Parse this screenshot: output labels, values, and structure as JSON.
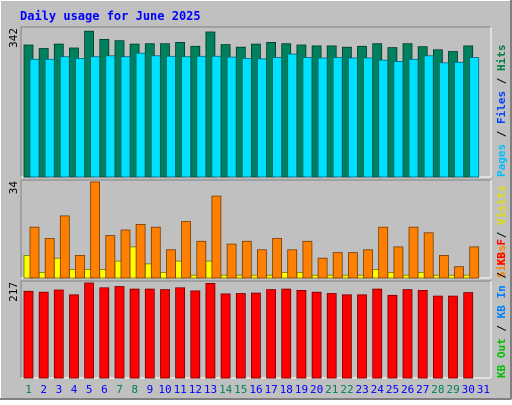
{
  "chart_data": {
    "type": "bar",
    "title": "Daily usage for June 2025",
    "days": [
      "1",
      "2",
      "3",
      "4",
      "5",
      "6",
      "7",
      "8",
      "9",
      "10",
      "11",
      "12",
      "13",
      "14",
      "15",
      "16",
      "17",
      "18",
      "19",
      "20",
      "21",
      "22",
      "23",
      "24",
      "25",
      "26",
      "27",
      "28",
      "29",
      "30",
      "31"
    ],
    "weekend_days": [
      "1",
      "7",
      "8",
      "14",
      "15",
      "21",
      "22",
      "28",
      "29"
    ],
    "panels": [
      {
        "id": "hits",
        "max_label": "342",
        "ymax": 342,
        "side_labels": [
          {
            "text": "Hits",
            "color": "#008040"
          },
          {
            "text": "Files",
            "color": "#0040ff"
          },
          {
            "text": "Pages",
            "color": "#00c0ff"
          }
        ],
        "series": [
          {
            "name": "Hits",
            "color": "#00805c",
            "values": [
              305,
              297,
              307,
              298,
              337,
              318,
              315,
              307,
              308,
              308,
              311,
              302,
              335,
              306,
              300,
              307,
              311,
              308,
              305,
              303,
              303,
              300,
              302,
              308,
              299,
              308,
              301,
              294,
              290,
              303,
              null
            ]
          },
          {
            "name": "Files",
            "color": "#0040ff",
            "values": [
              null,
              null,
              null,
              null,
              null,
              null,
              null,
              null,
              null,
              null,
              null,
              null,
              null,
              null,
              null,
              null,
              null,
              null,
              null,
              null,
              null,
              null,
              null,
              null,
              null,
              null,
              null,
              null,
              null,
              null,
              null
            ]
          },
          {
            "name": "Pages",
            "color": "#00e0ff",
            "values": [
              272,
              272,
              278,
              274,
              278,
              280,
              278,
              286,
              280,
              279,
              278,
              279,
              279,
              277,
              274,
              273,
              276,
              284,
              276,
              275,
              276,
              275,
              275,
              270,
              267,
              272,
              280,
              264,
              265,
              276,
              null
            ]
          }
        ]
      },
      {
        "id": "visits",
        "max_label": "34",
        "ymax": 34,
        "side_labels": [
          {
            "text": "Visits",
            "color": "#e0e000"
          },
          {
            "text": "Sites",
            "color": "#ff8000"
          }
        ],
        "series": [
          {
            "name": "Visits",
            "color": "#ffff00",
            "values": [
              8,
              2,
              7,
              3,
              3,
              3,
              6,
              11,
              5,
              2,
              6,
              1,
              6,
              1,
              1,
              1,
              1,
              2,
              2,
              1,
              1,
              1,
              1,
              3,
              2,
              1,
              2,
              1,
              1,
              1,
              null
            ]
          },
          {
            "name": "Sites",
            "color": "#ff8000",
            "values": [
              18,
              14,
              22,
              8,
              34,
              15,
              17,
              19,
              18,
              10,
              20,
              13,
              29,
              12,
              13,
              10,
              14,
              10,
              13,
              7,
              9,
              9,
              10,
              18,
              11,
              18,
              16,
              8,
              4,
              11,
              null
            ]
          }
        ]
      },
      {
        "id": "kbytes",
        "max_label": "217",
        "ymax": 217,
        "side_labels": [
          {
            "text": "KB F",
            "color": "#ff0000"
          },
          {
            "text": "KB In",
            "color": "#0080ff"
          },
          {
            "text": "KB Out",
            "color": "#00c000"
          }
        ],
        "series": [
          {
            "name": "KB F",
            "color": "#ff0000",
            "values": [
              198,
              196,
              201,
              190,
              217,
              206,
              209,
              203,
              203,
              202,
              206,
              199,
              216,
              192,
              193,
              194,
              202,
              203,
              200,
              196,
              193,
              190,
              190,
              203,
              189,
              202,
              200,
              187,
              187,
              195,
              null
            ]
          }
        ]
      }
    ]
  },
  "colors": {
    "background": "#c0c0c0",
    "frame": "#808080",
    "title": "#0000ff",
    "weekday_label": "#0000ff",
    "weekend_label": "#00805c"
  }
}
